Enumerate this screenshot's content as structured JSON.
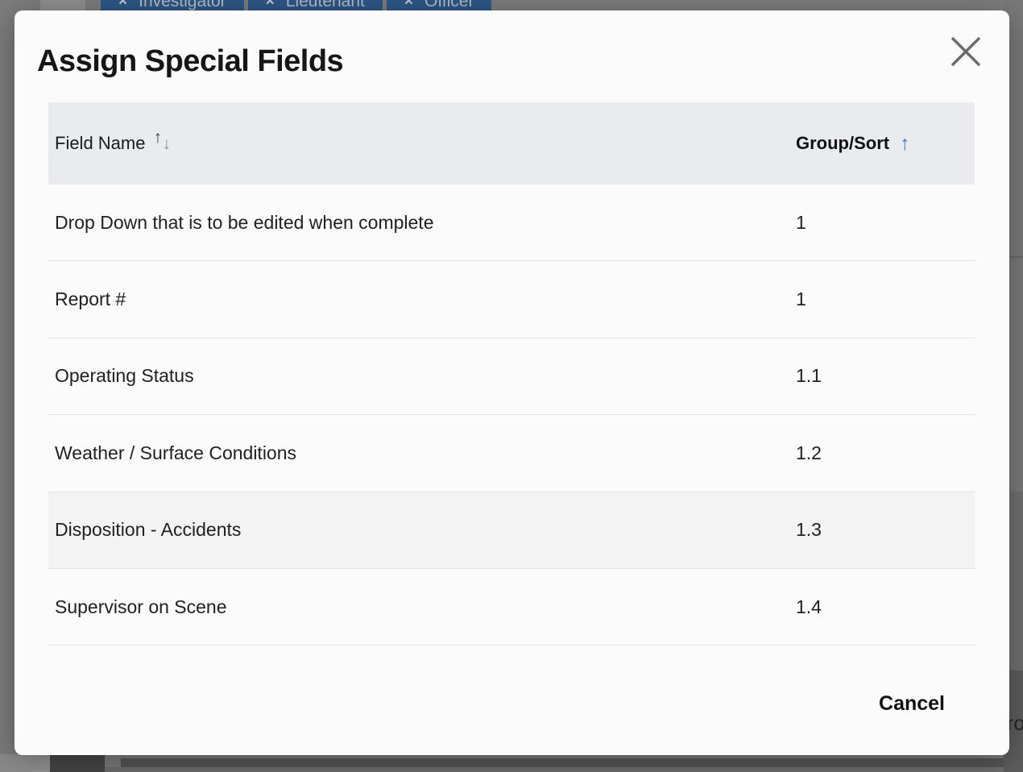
{
  "modal": {
    "title": "Assign Special Fields",
    "table": {
      "columns": [
        {
          "label": "Field Name",
          "sort_state": "none"
        },
        {
          "label": "Group/Sort",
          "sort_state": "ascending"
        }
      ],
      "rows": [
        {
          "field_name": "Drop Down that is to be edited when complete",
          "group_sort": "1",
          "highlighted": false
        },
        {
          "field_name": "Report #",
          "group_sort": "1",
          "highlighted": false
        },
        {
          "field_name": "Operating Status",
          "group_sort": "1.1",
          "highlighted": false
        },
        {
          "field_name": "Weather / Surface Conditions",
          "group_sort": "1.2",
          "highlighted": false
        },
        {
          "field_name": "Disposition - Accidents",
          "group_sort": "1.3",
          "highlighted": true
        },
        {
          "field_name": "Supervisor on Scene",
          "group_sort": "1.4",
          "highlighted": false
        }
      ]
    },
    "footer": {
      "cancel_label": "Cancel"
    }
  },
  "background": {
    "chips": [
      {
        "label": "Investigator"
      },
      {
        "label": "Lieutenant"
      },
      {
        "label": "Officer"
      }
    ],
    "partial_text_right": "ro"
  },
  "icons": {
    "sort_up": "↑",
    "sort_down": "↓",
    "sort_ascending": "↑",
    "chip_remove": "×"
  },
  "colors": {
    "accent_blue": "#3b78dd",
    "chip_blue": "#2e5787",
    "header_bg": "#e9ebef",
    "highlight_row_bg": "#f3f3f3",
    "modal_bg": "#fbfbfb",
    "backdrop": "#7d7d7d"
  }
}
